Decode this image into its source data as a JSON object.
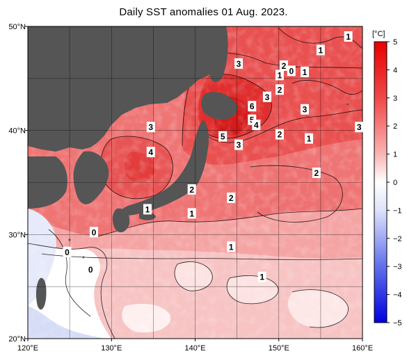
{
  "title": "Daily SST anomalies 01 Aug. 2023.",
  "map": {
    "lon_range": [
      120,
      160
    ],
    "lat_range": [
      20,
      50
    ],
    "lon_ticks": [
      {
        "value": 120,
        "label": "120°E"
      },
      {
        "value": 130,
        "label": "130°E"
      },
      {
        "value": 140,
        "label": "140°E"
      },
      {
        "value": 150,
        "label": "150°E"
      },
      {
        "value": 160,
        "label": "160°E"
      }
    ],
    "lat_ticks": [
      {
        "value": 50,
        "label": "50°N"
      },
      {
        "value": 40,
        "label": "40°N"
      },
      {
        "value": 30,
        "label": "30°N"
      },
      {
        "value": 20,
        "label": "20°N"
      }
    ],
    "land_color": "#555555",
    "contour_labels": [
      {
        "text": "1",
        "lon": 158.3,
        "lat": 49.0
      },
      {
        "text": "1",
        "lon": 155.0,
        "lat": 47.7
      },
      {
        "text": "3",
        "lon": 145.2,
        "lat": 46.4
      },
      {
        "text": "2",
        "lon": 150.6,
        "lat": 46.2
      },
      {
        "text": "0",
        "lon": 151.5,
        "lat": 45.7
      },
      {
        "text": "1",
        "lon": 153.1,
        "lat": 45.6
      },
      {
        "text": "1",
        "lon": 150.1,
        "lat": 45.3
      },
      {
        "text": "2",
        "lon": 150.1,
        "lat": 43.9
      },
      {
        "text": "3",
        "lon": 148.6,
        "lat": 43.2
      },
      {
        "text": "6",
        "lon": 146.8,
        "lat": 42.3
      },
      {
        "text": "3",
        "lon": 153.1,
        "lat": 42.0
      },
      {
        "text": "5",
        "lon": 146.8,
        "lat": 41.0
      },
      {
        "text": "4",
        "lon": 147.3,
        "lat": 40.5
      },
      {
        "text": "3",
        "lon": 134.7,
        "lat": 40.3
      },
      {
        "text": "3",
        "lon": 159.6,
        "lat": 40.3
      },
      {
        "text": "2",
        "lon": 150.1,
        "lat": 39.6
      },
      {
        "text": "5",
        "lon": 143.3,
        "lat": 39.4
      },
      {
        "text": "1",
        "lon": 153.6,
        "lat": 39.2
      },
      {
        "text": "3",
        "lon": 145.2,
        "lat": 38.6
      },
      {
        "text": "4",
        "lon": 134.7,
        "lat": 37.9
      },
      {
        "text": "2",
        "lon": 154.5,
        "lat": 35.9
      },
      {
        "text": "2",
        "lon": 139.6,
        "lat": 34.3
      },
      {
        "text": "2",
        "lon": 144.3,
        "lat": 33.5
      },
      {
        "text": "1",
        "lon": 134.3,
        "lat": 32.4
      },
      {
        "text": "1",
        "lon": 139.6,
        "lat": 32.0
      },
      {
        "text": "0",
        "lon": 127.9,
        "lat": 30.2
      },
      {
        "text": "1",
        "lon": 144.3,
        "lat": 28.8
      },
      {
        "text": "0",
        "lon": 124.7,
        "lat": 28.3
      },
      {
        "text": "0",
        "lon": 127.5,
        "lat": 26.6
      },
      {
        "text": "1",
        "lon": 148.0,
        "lat": 25.9
      }
    ]
  },
  "colorbar": {
    "unit": "[°C]",
    "ticks": [
      {
        "value": 5,
        "label": "5"
      },
      {
        "value": 4,
        "label": "4"
      },
      {
        "value": 3,
        "label": "3"
      },
      {
        "value": 2,
        "label": "2"
      },
      {
        "value": 1,
        "label": "1"
      },
      {
        "value": 0,
        "label": "0"
      },
      {
        "value": -1,
        "label": "−1"
      },
      {
        "value": -2,
        "label": "−2"
      },
      {
        "value": -3,
        "label": "−3"
      },
      {
        "value": -4,
        "label": "−4"
      },
      {
        "value": -5,
        "label": "−5"
      }
    ],
    "color_stops": [
      {
        "value": 5,
        "color": "#e80000"
      },
      {
        "value": 3,
        "color": "#f04848"
      },
      {
        "value": 1,
        "color": "#fab4b4"
      },
      {
        "value": 0,
        "color": "#ffffff"
      },
      {
        "value": -1,
        "color": "#dde3fa"
      },
      {
        "value": -3,
        "color": "#6070ea"
      },
      {
        "value": -5,
        "color": "#0000e0"
      }
    ]
  }
}
